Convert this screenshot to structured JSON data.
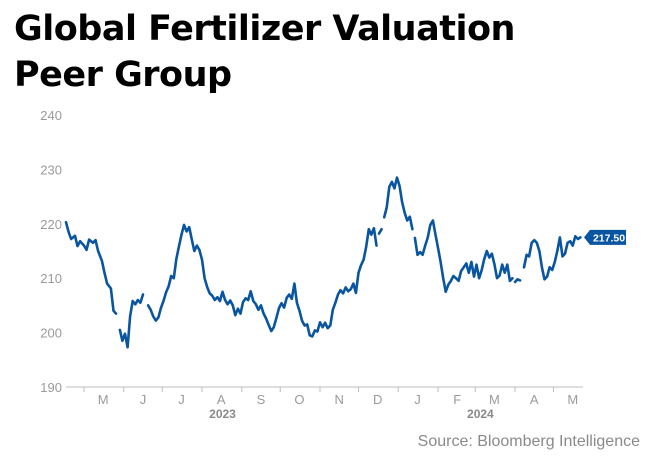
{
  "chart_data": {
    "type": "line",
    "title": [
      "Global Fertilizer Valuation",
      "Peer Group"
    ],
    "source": "Source: Bloomberg Intelligence",
    "ylim": [
      190,
      240
    ],
    "y_ticks": [
      190,
      200,
      210,
      220,
      230,
      240
    ],
    "x_range": [
      "2023-04-17",
      "2024-05-24"
    ],
    "month_ticks": [
      {
        "label": "M",
        "date": "2023-05-01"
      },
      {
        "label": "J",
        "date": "2023-06-01"
      },
      {
        "label": "J",
        "date": "2023-07-01"
      },
      {
        "label": "A",
        "date": "2023-08-01"
      },
      {
        "label": "S",
        "date": "2023-09-01"
      },
      {
        "label": "O",
        "date": "2023-10-01"
      },
      {
        "label": "N",
        "date": "2023-11-01"
      },
      {
        "label": "D",
        "date": "2023-12-01"
      },
      {
        "label": "J",
        "date": "2024-01-01"
      },
      {
        "label": "F",
        "date": "2024-02-01"
      },
      {
        "label": "M",
        "date": "2024-03-01"
      },
      {
        "label": "A",
        "date": "2024-04-01"
      },
      {
        "label": "M",
        "date": "2024-05-01"
      }
    ],
    "year_labels": [
      {
        "label": "2023",
        "date": "2023-08-17"
      },
      {
        "label": "2024",
        "date": "2024-03-05"
      }
    ],
    "last_value_label": "217.50",
    "line_color": "#0a55a0",
    "grid": false,
    "series": [
      {
        "color": "#0a55a0",
        "points": [
          [
            "2023-04-17",
            220.3
          ],
          [
            "2023-04-19",
            218.5
          ],
          [
            "2023-04-21",
            217.2
          ],
          [
            "2023-04-24",
            217.8
          ],
          [
            "2023-04-26",
            215.9
          ],
          [
            "2023-04-28",
            216.8
          ],
          [
            "2023-05-01",
            216.0
          ],
          [
            "2023-05-03",
            215.2
          ],
          [
            "2023-05-05",
            217.1
          ],
          [
            "2023-05-08",
            216.5
          ],
          [
            "2023-05-10",
            217.0
          ],
          [
            "2023-05-12",
            215.0
          ],
          [
            "2023-05-15",
            213.2
          ],
          [
            "2023-05-17",
            211.0
          ],
          [
            "2023-05-19",
            209.0
          ],
          [
            "2023-05-22",
            208.1
          ],
          [
            "2023-05-24",
            204.0
          ],
          [
            "2023-05-26",
            203.5
          ],
          null,
          [
            "2023-05-29",
            200.5
          ],
          [
            "2023-05-31",
            198.5
          ],
          [
            "2023-06-02",
            199.8
          ],
          [
            "2023-06-04",
            197.3
          ],
          [
            "2023-06-06",
            203.0
          ],
          [
            "2023-06-08",
            205.8
          ],
          [
            "2023-06-10",
            205.2
          ],
          [
            "2023-06-12",
            206.0
          ],
          [
            "2023-06-14",
            205.5
          ],
          [
            "2023-06-16",
            207.0
          ],
          null,
          [
            "2023-06-20",
            205.0
          ],
          [
            "2023-06-22",
            204.2
          ],
          [
            "2023-06-24",
            203.0
          ],
          [
            "2023-06-26",
            202.2
          ],
          [
            "2023-06-28",
            202.8
          ],
          [
            "2023-06-30",
            204.5
          ],
          [
            "2023-07-02",
            205.8
          ],
          [
            "2023-07-04",
            207.4
          ],
          [
            "2023-07-06",
            208.5
          ],
          [
            "2023-07-08",
            210.4
          ],
          [
            "2023-07-10",
            210.0
          ],
          [
            "2023-07-12",
            213.5
          ],
          [
            "2023-07-14",
            215.8
          ],
          [
            "2023-07-16",
            218.0
          ],
          [
            "2023-07-18",
            219.8
          ],
          [
            "2023-07-20",
            218.6
          ],
          [
            "2023-07-22",
            219.4
          ],
          [
            "2023-07-24",
            217.2
          ],
          [
            "2023-07-26",
            215.0
          ],
          [
            "2023-07-28",
            216.0
          ],
          [
            "2023-07-30",
            215.2
          ],
          [
            "2023-08-01",
            213.4
          ],
          [
            "2023-08-03",
            210.0
          ],
          [
            "2023-08-05",
            208.4
          ],
          [
            "2023-08-07",
            207.2
          ],
          [
            "2023-08-09",
            206.8
          ],
          [
            "2023-08-11",
            206.0
          ],
          [
            "2023-08-13",
            206.5
          ],
          [
            "2023-08-15",
            205.8
          ],
          [
            "2023-08-17",
            207.5
          ],
          [
            "2023-08-19",
            206.0
          ],
          [
            "2023-08-21",
            205.2
          ],
          [
            "2023-08-23",
            205.9
          ],
          [
            "2023-08-25",
            205.0
          ],
          [
            "2023-08-27",
            203.2
          ],
          [
            "2023-08-29",
            204.4
          ],
          [
            "2023-08-31",
            203.5
          ],
          [
            "2023-09-02",
            205.6
          ],
          [
            "2023-09-04",
            206.3
          ],
          [
            "2023-09-06",
            206.0
          ],
          [
            "2023-09-08",
            207.6
          ],
          [
            "2023-09-10",
            205.8
          ],
          [
            "2023-09-12",
            205.2
          ],
          [
            "2023-09-14",
            204.2
          ],
          [
            "2023-09-16",
            205.0
          ],
          [
            "2023-09-18",
            203.5
          ],
          [
            "2023-09-20",
            202.6
          ],
          [
            "2023-09-22",
            201.4
          ],
          [
            "2023-09-24",
            200.3
          ],
          [
            "2023-09-26",
            201.0
          ],
          [
            "2023-09-28",
            202.7
          ],
          [
            "2023-09-30",
            204.5
          ],
          [
            "2023-10-02",
            205.4
          ],
          [
            "2023-10-04",
            204.6
          ],
          [
            "2023-10-06",
            206.4
          ],
          [
            "2023-10-08",
            207.0
          ],
          [
            "2023-10-10",
            206.2
          ],
          [
            "2023-10-12",
            209.0
          ],
          [
            "2023-10-14",
            205.5
          ],
          [
            "2023-10-16",
            204.0
          ],
          [
            "2023-10-18",
            202.2
          ],
          [
            "2023-10-20",
            201.3
          ],
          [
            "2023-10-22",
            201.5
          ],
          [
            "2023-10-24",
            199.5
          ],
          [
            "2023-10-26",
            199.3
          ],
          [
            "2023-10-28",
            200.4
          ],
          [
            "2023-10-30",
            200.2
          ],
          [
            "2023-11-01",
            201.9
          ],
          [
            "2023-11-03",
            201.0
          ],
          [
            "2023-11-05",
            201.8
          ],
          [
            "2023-11-07",
            200.8
          ],
          [
            "2023-11-09",
            201.3
          ],
          [
            "2023-11-11",
            204.2
          ],
          [
            "2023-11-13",
            205.5
          ],
          [
            "2023-11-15",
            207.0
          ],
          [
            "2023-11-17",
            207.8
          ],
          [
            "2023-11-19",
            207.2
          ],
          [
            "2023-11-21",
            208.3
          ],
          [
            "2023-11-23",
            207.6
          ],
          [
            "2023-11-25",
            208.0
          ],
          [
            "2023-11-27",
            209.0
          ],
          [
            "2023-11-29",
            207.3
          ],
          [
            "2023-12-01",
            211.0
          ],
          [
            "2023-12-03",
            212.4
          ],
          [
            "2023-12-05",
            213.4
          ],
          [
            "2023-12-07",
            215.8
          ],
          [
            "2023-12-09",
            219.0
          ],
          [
            "2023-12-11",
            218.0
          ],
          [
            "2023-12-13",
            219.2
          ],
          [
            "2023-12-15",
            216.0
          ],
          null,
          [
            "2023-12-17",
            218.2
          ],
          [
            "2023-12-19",
            219.0
          ],
          null,
          [
            "2023-12-21",
            221.2
          ],
          [
            "2023-12-23",
            223.0
          ],
          [
            "2023-12-25",
            226.8
          ],
          [
            "2023-12-27",
            227.7
          ],
          [
            "2023-12-29",
            226.5
          ],
          [
            "2023-12-31",
            228.5
          ],
          [
            "2024-01-02",
            227.0
          ],
          [
            "2024-01-04",
            224.0
          ],
          [
            "2024-01-06",
            222.0
          ],
          [
            "2024-01-08",
            220.6
          ],
          [
            "2024-01-10",
            221.3
          ],
          [
            "2024-01-12",
            219.0
          ],
          null,
          [
            "2024-01-14",
            217.4
          ],
          [
            "2024-01-16",
            214.3
          ],
          [
            "2024-01-18",
            214.8
          ],
          [
            "2024-01-20",
            214.3
          ],
          [
            "2024-01-22",
            216.0
          ],
          [
            "2024-01-24",
            217.5
          ],
          [
            "2024-01-26",
            219.8
          ],
          [
            "2024-01-28",
            220.6
          ],
          [
            "2024-01-30",
            218.0
          ],
          [
            "2024-02-01",
            215.6
          ],
          [
            "2024-02-03",
            213.0
          ],
          [
            "2024-02-05",
            210.0
          ],
          [
            "2024-02-07",
            207.5
          ],
          [
            "2024-02-09",
            208.8
          ],
          [
            "2024-02-11",
            209.5
          ],
          [
            "2024-02-13",
            210.4
          ],
          [
            "2024-02-15",
            210.0
          ],
          [
            "2024-02-17",
            209.5
          ],
          [
            "2024-02-19",
            211.3
          ],
          [
            "2024-02-21",
            212.0
          ],
          [
            "2024-02-23",
            212.7
          ],
          [
            "2024-02-25",
            211.0
          ],
          [
            "2024-02-27",
            213.0
          ],
          [
            "2024-02-29",
            210.3
          ],
          [
            "2024-03-02",
            212.5
          ],
          [
            "2024-03-04",
            210.0
          ],
          [
            "2024-03-06",
            211.5
          ],
          [
            "2024-03-08",
            213.5
          ],
          [
            "2024-03-10",
            215.0
          ],
          [
            "2024-03-12",
            213.8
          ],
          [
            "2024-03-14",
            214.5
          ],
          [
            "2024-03-16",
            212.5
          ],
          [
            "2024-03-18",
            210.0
          ],
          [
            "2024-03-20",
            210.5
          ],
          [
            "2024-03-22",
            212.5
          ],
          [
            "2024-03-24",
            211.0
          ],
          [
            "2024-03-26",
            212.5
          ],
          [
            "2024-03-28",
            209.5
          ],
          [
            "2024-03-30",
            210.0
          ],
          null,
          [
            "2024-04-01",
            209.3
          ],
          [
            "2024-04-03",
            209.8
          ],
          [
            "2024-04-05",
            209.6
          ],
          null,
          [
            "2024-04-08",
            212.0
          ],
          [
            "2024-04-10",
            214.3
          ],
          [
            "2024-04-12",
            214.0
          ],
          [
            "2024-04-14",
            216.5
          ],
          [
            "2024-04-16",
            217.0
          ],
          [
            "2024-04-18",
            216.5
          ],
          [
            "2024-04-20",
            215.0
          ],
          [
            "2024-04-22",
            212.0
          ],
          [
            "2024-04-24",
            209.8
          ],
          [
            "2024-04-26",
            210.3
          ],
          [
            "2024-04-28",
            212.0
          ],
          [
            "2024-04-30",
            211.5
          ],
          [
            "2024-05-02",
            213.0
          ],
          [
            "2024-05-04",
            215.0
          ],
          [
            "2024-05-06",
            217.5
          ],
          [
            "2024-05-08",
            214.0
          ],
          [
            "2024-05-10",
            214.5
          ],
          [
            "2024-05-12",
            216.5
          ],
          [
            "2024-05-14",
            216.8
          ],
          [
            "2024-05-16",
            216.0
          ],
          [
            "2024-05-18",
            217.7
          ],
          [
            "2024-05-20",
            217.2
          ],
          [
            "2024-05-22",
            217.5
          ]
        ]
      }
    ]
  }
}
